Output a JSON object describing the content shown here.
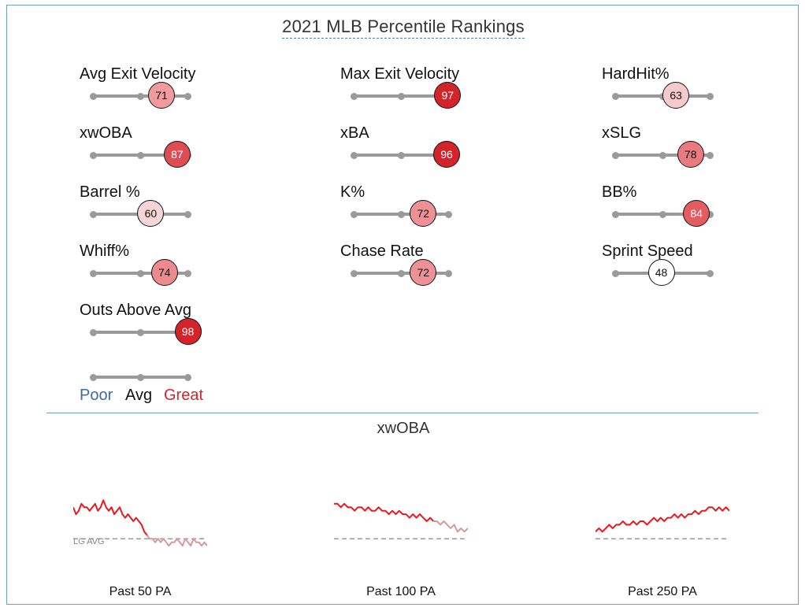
{
  "title": "2021 MLB Percentile Rankings",
  "colors": {
    "poor": "#3d6aa8",
    "great": "#d1262b",
    "track": "#9a9a9a",
    "lg_avg": "#888888"
  },
  "chart_data": [
    {
      "type": "percentile",
      "metrics": [
        {
          "label": "Avg Exit Velocity",
          "value": 71,
          "fill": "#ef9a9c"
        },
        {
          "label": "Max Exit Velocity",
          "value": 97,
          "fill": "#d3242c"
        },
        {
          "label": "HardHit%",
          "value": 63,
          "fill": "#f6c9cb"
        },
        {
          "label": "xwOBA",
          "value": 87,
          "fill": "#df4d53"
        },
        {
          "label": "xBA",
          "value": 96,
          "fill": "#d3242c"
        },
        {
          "label": "xSLG",
          "value": 78,
          "fill": "#ea7a7f"
        },
        {
          "label": "Barrel %",
          "value": 60,
          "fill": "#f7d5d6"
        },
        {
          "label": "K%",
          "value": 72,
          "fill": "#ee9196"
        },
        {
          "label": "BB%",
          "value": 84,
          "fill": "#e25c62"
        },
        {
          "label": "Whiff%",
          "value": 74,
          "fill": "#ec8a8e"
        },
        {
          "label": "Chase Rate",
          "value": 72,
          "fill": "#ee9196"
        },
        {
          "label": "Sprint Speed",
          "value": 48,
          "fill": "#ffffff"
        },
        {
          "label": "Outs Above Avg",
          "value": 98,
          "fill": "#d3242c"
        }
      ],
      "legend": [
        "Poor",
        "Avg",
        "Great"
      ]
    },
    {
      "type": "line",
      "title": "xwOBA",
      "reference_label": "LG AVG",
      "charts": [
        {
          "label": "Past 50 PA",
          "split": 0.55,
          "values": [
            0.4,
            0.38,
            0.39,
            0.41,
            0.4,
            0.4,
            0.39,
            0.4,
            0.41,
            0.39,
            0.4,
            0.42,
            0.4,
            0.39,
            0.4,
            0.38,
            0.39,
            0.4,
            0.38,
            0.37,
            0.38,
            0.37,
            0.36,
            0.37,
            0.36,
            0.35,
            0.33,
            0.32,
            0.31,
            0.31,
            0.3,
            0.31,
            0.3,
            0.31,
            0.3,
            0.29,
            0.3,
            0.3,
            0.31,
            0.3,
            0.29,
            0.31,
            0.3,
            0.29,
            0.31,
            0.3,
            0.3,
            0.29,
            0.3,
            0.29
          ]
        },
        {
          "label": "Past 100 PA",
          "split": 0.75,
          "values": [
            0.41,
            0.41,
            0.4,
            0.41,
            0.4,
            0.4,
            0.39,
            0.4,
            0.4,
            0.39,
            0.4,
            0.39,
            0.39,
            0.4,
            0.39,
            0.39,
            0.38,
            0.39,
            0.38,
            0.39,
            0.38,
            0.38,
            0.37,
            0.38,
            0.37,
            0.38,
            0.37,
            0.36,
            0.37,
            0.36,
            0.36,
            0.35,
            0.36,
            0.35,
            0.34,
            0.35,
            0.33,
            0.34,
            0.33,
            0.34
          ]
        },
        {
          "label": "Past 250 PA",
          "split": 0.0,
          "values": [
            0.33,
            0.34,
            0.33,
            0.34,
            0.35,
            0.34,
            0.35,
            0.35,
            0.36,
            0.35,
            0.35,
            0.36,
            0.35,
            0.36,
            0.36,
            0.35,
            0.36,
            0.37,
            0.36,
            0.37,
            0.36,
            0.37,
            0.37,
            0.38,
            0.37,
            0.38,
            0.37,
            0.38,
            0.38,
            0.39,
            0.38,
            0.39,
            0.39,
            0.4,
            0.4,
            0.39,
            0.4,
            0.39,
            0.4,
            0.39
          ]
        }
      ],
      "lg_avg": 0.31,
      "ylim": [
        0.27,
        0.45
      ]
    }
  ]
}
